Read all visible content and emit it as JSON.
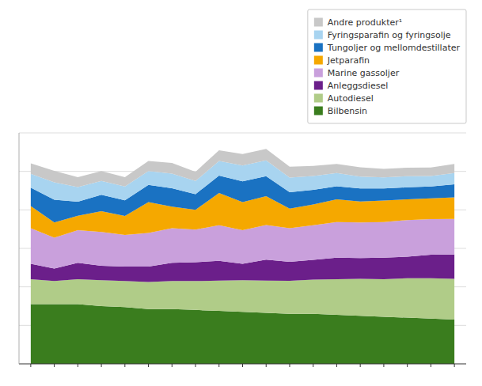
{
  "chart_data": {
    "type": "area",
    "stacked": true,
    "categories": [
      null,
      null,
      null,
      null,
      null,
      null,
      null,
      null,
      null,
      null,
      null,
      null,
      null,
      null,
      null,
      null,
      null,
      null,
      null
    ],
    "series": [
      {
        "name": "Bilbensin",
        "color": "#3a7d1e",
        "values": [
          310,
          310,
          310,
          300,
          295,
          285,
          285,
          280,
          275,
          270,
          265,
          260,
          260,
          255,
          250,
          245,
          240,
          235,
          230
        ]
      },
      {
        "name": "Autodiesel",
        "color": "#b0cc88",
        "values": [
          130,
          120,
          130,
          135,
          135,
          140,
          145,
          150,
          158,
          165,
          168,
          172,
          178,
          185,
          192,
          195,
          205,
          210,
          212
        ]
      },
      {
        "name": "Anleggsdiesel",
        "color": "#6b1f8a",
        "values": [
          80,
          65,
          85,
          75,
          75,
          80,
          95,
          98,
          102,
          85,
          108,
          98,
          102,
          112,
          108,
          112,
          112,
          122,
          126
        ]
      },
      {
        "name": "Marine gassoljer",
        "color": "#c9a0dc",
        "values": [
          185,
          160,
          170,
          175,
          165,
          175,
          180,
          170,
          185,
          175,
          180,
          175,
          180,
          185,
          185,
          185,
          190,
          185,
          185
        ]
      },
      {
        "name": "Jetparafin",
        "color": "#f5a800",
        "values": [
          115,
          80,
          75,
          108,
          98,
          160,
          112,
          102,
          168,
          145,
          150,
          102,
          108,
          118,
          108,
          112,
          108,
          108,
          112
        ]
      },
      {
        "name": "Tungoljer og mellomdestillater",
        "color": "#1a72c2",
        "values": [
          95,
          118,
          72,
          85,
          82,
          90,
          95,
          82,
          90,
          108,
          104,
          85,
          76,
          68,
          68,
          62,
          62,
          62,
          68
        ]
      },
      {
        "name": "Fyringsparafin og fyringsolje",
        "color": "#a8d4f0",
        "values": [
          72,
          90,
          76,
          72,
          72,
          72,
          76,
          68,
          76,
          82,
          82,
          76,
          72,
          68,
          62,
          58,
          58,
          54,
          58
        ]
      },
      {
        "name": "Andre produkter¹",
        "color": "#c8c8c8",
        "values": [
          55,
          60,
          52,
          52,
          48,
          52,
          56,
          48,
          56,
          60,
          60,
          56,
          52,
          48,
          48,
          44,
          44,
          44,
          48
        ]
      }
    ],
    "ylim": [
      0,
      1200
    ],
    "yticks": [
      200,
      400,
      600,
      800,
      1000,
      1200
    ],
    "grid": true,
    "tick_labels": false,
    "legend": "upper right"
  }
}
